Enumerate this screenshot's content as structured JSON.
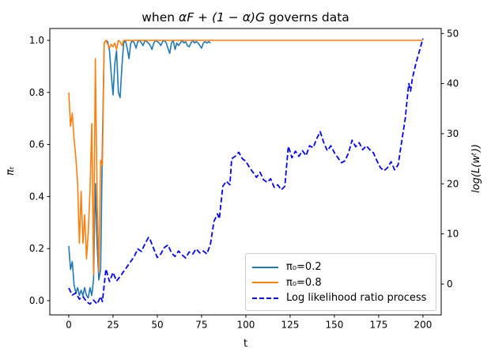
{
  "chart_data": {
    "type": "line",
    "title": "when αF + (1 − α)G governs data",
    "title_parts": [
      "when ",
      "αF + (1 − α)G",
      " governs data"
    ],
    "xlabel": "t",
    "ylabel_left": "πₜ",
    "ylabel_right": "log(L(wᵗ))",
    "x_ticks": [
      0,
      25,
      50,
      75,
      100,
      125,
      150,
      175,
      200
    ],
    "y_left_ticks": [
      "0.0",
      "0.2",
      "0.4",
      "0.6",
      "0.8",
      "1.0"
    ],
    "y_right_ticks": [
      "0",
      "10",
      "20",
      "30",
      "40",
      "50"
    ],
    "xlim": [
      -10.7,
      210.3
    ],
    "ylim_left": [
      -0.0547,
      1.0456
    ],
    "ylim_right": [
      -6.16,
      50.99
    ],
    "grid": false,
    "legend_position": "lower right",
    "series": [
      {
        "name": "π₀=0.2",
        "color": "#1f77b4",
        "dash": "solid",
        "axis": "left",
        "points": [
          [
            0,
            0.21
          ],
          [
            1,
            0.12
          ],
          [
            2,
            0.15
          ],
          [
            3,
            0.06
          ],
          [
            4,
            0.03
          ],
          [
            5,
            0.05
          ],
          [
            6,
            0.02
          ],
          [
            7,
            0.04
          ],
          [
            8,
            0.02
          ],
          [
            9,
            0.05
          ],
          [
            10,
            0.02
          ],
          [
            11,
            0.01
          ],
          [
            12,
            0.05
          ],
          [
            13,
            0.02
          ],
          [
            14,
            0.08
          ],
          [
            15,
            0.45
          ],
          [
            16,
            0.22
          ],
          [
            17,
            0.08
          ],
          [
            18,
            0.12
          ],
          [
            19,
            0.6
          ],
          [
            20,
            0.99
          ],
          [
            21,
            1
          ],
          [
            22,
            0.995
          ],
          [
            23,
            0.96
          ],
          [
            24,
            0.87
          ],
          [
            25,
            0.79
          ],
          [
            26,
            0.91
          ],
          [
            27,
            0.96
          ],
          [
            28,
            0.8
          ],
          [
            29,
            0.78
          ],
          [
            30,
            0.9
          ],
          [
            31,
            0.99
          ],
          [
            32,
            1
          ],
          [
            33,
            0.97
          ],
          [
            34,
            0.93
          ],
          [
            35,
            0.99
          ],
          [
            36,
            1
          ],
          [
            37,
            0.99
          ],
          [
            38,
            0.97
          ],
          [
            39,
            0.995
          ],
          [
            40,
            1
          ],
          [
            41,
            0.99
          ],
          [
            42,
            0.98
          ],
          [
            43,
            1
          ],
          [
            44,
            0.995
          ],
          [
            45,
            0.99
          ],
          [
            46,
            0.98
          ],
          [
            47,
            0.965
          ],
          [
            48,
            0.99
          ],
          [
            49,
            1
          ],
          [
            50,
            0.995
          ],
          [
            51,
            0.99
          ],
          [
            52,
            0.98
          ],
          [
            53,
            0.995
          ],
          [
            54,
            1
          ],
          [
            55,
            0.99
          ],
          [
            56,
            0.97
          ],
          [
            57,
            0.95
          ],
          [
            58,
            0.99
          ],
          [
            59,
            1
          ],
          [
            60,
            0.965
          ],
          [
            61,
            0.99
          ],
          [
            62,
            0.98
          ],
          [
            63,
            0.99
          ],
          [
            64,
            1
          ],
          [
            65,
            0.99
          ],
          [
            66,
            0.995
          ],
          [
            67,
            0.98
          ],
          [
            68,
            0.975
          ],
          [
            69,
            0.99
          ],
          [
            70,
            1
          ],
          [
            71,
            0.99
          ],
          [
            72,
            0.995
          ],
          [
            73,
            0.99
          ],
          [
            74,
            0.98
          ],
          [
            75,
            0.97
          ],
          [
            76,
            0.99
          ],
          [
            77,
            0.995
          ],
          [
            78,
            0.99
          ],
          [
            79,
            0.995
          ],
          [
            80,
            0.99
          ]
        ]
      },
      {
        "name": "π₀=0.8",
        "color": "#ff7f0e",
        "dash": "solid",
        "axis": "left",
        "points": [
          [
            0,
            0.8
          ],
          [
            1,
            0.67
          ],
          [
            2,
            0.72
          ],
          [
            3,
            0.62
          ],
          [
            4,
            0.55
          ],
          [
            5,
            0.45
          ],
          [
            6,
            0.22
          ],
          [
            7,
            0.42
          ],
          [
            8,
            0.22
          ],
          [
            9,
            0.33
          ],
          [
            10,
            0.16
          ],
          [
            11,
            0.26
          ],
          [
            12,
            0.42
          ],
          [
            13,
            0.68
          ],
          [
            14,
            0.1
          ],
          [
            15,
            0.93
          ],
          [
            16,
            0.4
          ],
          [
            17,
            0.11
          ],
          [
            18,
            0.54
          ],
          [
            19,
            0.52
          ],
          [
            20,
            0.99
          ],
          [
            21,
            1
          ],
          [
            22,
            0.985
          ],
          [
            23,
            0.97
          ],
          [
            24,
            0.985
          ],
          [
            25,
            0.975
          ],
          [
            26,
            0.99
          ],
          [
            27,
            0.965
          ],
          [
            28,
            1
          ],
          [
            29,
            0.995
          ],
          [
            30,
            0.98
          ],
          [
            31,
            1
          ],
          [
            32,
            1
          ],
          [
            36,
            1
          ],
          [
            40,
            1
          ],
          [
            45,
            1
          ],
          [
            50,
            1
          ],
          [
            60,
            1
          ],
          [
            70,
            1
          ],
          [
            80,
            1
          ],
          [
            90,
            1
          ],
          [
            100,
            1
          ],
          [
            110,
            1
          ],
          [
            120,
            1
          ],
          [
            130,
            1
          ],
          [
            140,
            1
          ],
          [
            150,
            1
          ],
          [
            160,
            1
          ],
          [
            170,
            1
          ],
          [
            180,
            1
          ],
          [
            190,
            1
          ],
          [
            200,
            1
          ]
        ]
      },
      {
        "name": "Log likelihood ratio process",
        "color": "#0000ff",
        "dash": "dashed",
        "axis": "right",
        "points": [
          [
            0,
            -0.8
          ],
          [
            2,
            -2.2
          ],
          [
            4,
            -1.8
          ],
          [
            6,
            -3
          ],
          [
            8,
            -2.5
          ],
          [
            10,
            -3.5
          ],
          [
            12,
            -4
          ],
          [
            14,
            -3.2
          ],
          [
            16,
            -4
          ],
          [
            18,
            -2.5
          ],
          [
            19,
            -3.5
          ],
          [
            21,
            3
          ],
          [
            23,
            0.5
          ],
          [
            25,
            2.3
          ],
          [
            27,
            0.6
          ],
          [
            29,
            1.5
          ],
          [
            31,
            2.5
          ],
          [
            33,
            3.5
          ],
          [
            35,
            4.5
          ],
          [
            37,
            5.5
          ],
          [
            39,
            7
          ],
          [
            41,
            6.5
          ],
          [
            43,
            8
          ],
          [
            45,
            9.3
          ],
          [
            46,
            8.8
          ],
          [
            48,
            7
          ],
          [
            50,
            5.3
          ],
          [
            52,
            6
          ],
          [
            54,
            7.3
          ],
          [
            56,
            7.8
          ],
          [
            58,
            6.2
          ],
          [
            60,
            5.5
          ],
          [
            62,
            6.6
          ],
          [
            64,
            5.8
          ],
          [
            66,
            5.2
          ],
          [
            68,
            6.4
          ],
          [
            70,
            6
          ],
          [
            72,
            7
          ],
          [
            74,
            6.2
          ],
          [
            76,
            6.6
          ],
          [
            78,
            6
          ],
          [
            80,
            8
          ],
          [
            82,
            12.5
          ],
          [
            84,
            14
          ],
          [
            85,
            13
          ],
          [
            87,
            19.5
          ],
          [
            89,
            20.5
          ],
          [
            91,
            19.8
          ],
          [
            92,
            25
          ],
          [
            94,
            25.5
          ],
          [
            96,
            26.3
          ],
          [
            98,
            25
          ],
          [
            100,
            24.5
          ],
          [
            102,
            23.3
          ],
          [
            104,
            22.3
          ],
          [
            106,
            21.3
          ],
          [
            108,
            22.3
          ],
          [
            110,
            20.8
          ],
          [
            112,
            20.3
          ],
          [
            114,
            21
          ],
          [
            116,
            19.3
          ],
          [
            118,
            19.8
          ],
          [
            120,
            18.8
          ],
          [
            122,
            19.5
          ],
          [
            124,
            27.5
          ],
          [
            126,
            25.2
          ],
          [
            128,
            26.5
          ],
          [
            130,
            25.5
          ],
          [
            132,
            26.6
          ],
          [
            134,
            25.6
          ],
          [
            136,
            27.6
          ],
          [
            138,
            27.2
          ],
          [
            140,
            29
          ],
          [
            142,
            30.4
          ],
          [
            144,
            28.2
          ],
          [
            146,
            26.6
          ],
          [
            148,
            27.6
          ],
          [
            150,
            26.2
          ],
          [
            152,
            25.2
          ],
          [
            154,
            24.2
          ],
          [
            156,
            24.6
          ],
          [
            158,
            26.2
          ],
          [
            160,
            28.7
          ],
          [
            162,
            27.4
          ],
          [
            164,
            28.2
          ],
          [
            166,
            26.8
          ],
          [
            168,
            27.6
          ],
          [
            170,
            26.8
          ],
          [
            172,
            26.2
          ],
          [
            174,
            24.6
          ],
          [
            176,
            23.2
          ],
          [
            178,
            22.6
          ],
          [
            180,
            23.2
          ],
          [
            182,
            24.4
          ],
          [
            184,
            22.8
          ],
          [
            186,
            23.8
          ],
          [
            188,
            28.5
          ],
          [
            190,
            33
          ],
          [
            192,
            40
          ],
          [
            193,
            38.5
          ],
          [
            194,
            41
          ],
          [
            196,
            44
          ],
          [
            198,
            46.5
          ],
          [
            200,
            49
          ]
        ]
      }
    ]
  }
}
